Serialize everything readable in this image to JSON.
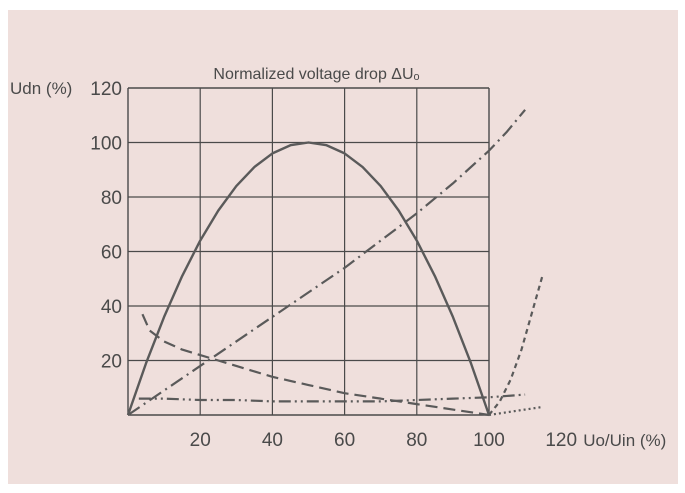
{
  "chart_data": {
    "type": "line",
    "title": "Normalized voltage drop ΔUₒ",
    "xlabel": "Uo/Uin (%)",
    "ylabel": "Udn (%)",
    "xlim": [
      0,
      120
    ],
    "ylim": [
      0,
      120
    ],
    "x_ticks": [
      20,
      40,
      60,
      80,
      100,
      120
    ],
    "y_ticks": [
      20,
      40,
      60,
      80,
      100,
      120
    ],
    "x_tick_labels": [
      "20",
      "40",
      "60",
      "80",
      "100",
      "120"
    ],
    "y_tick_labels": [
      "20",
      "40",
      "60",
      "80",
      "100",
      "120"
    ],
    "grid": true,
    "colors": {
      "background": "#efdfdc",
      "plot_area": "#efdfdc",
      "grid": "#4a4a4a",
      "curve": "#5a5a5a",
      "text": "#4a4a4a"
    },
    "series": [
      {
        "style": "solid",
        "x": [
          0,
          5,
          10,
          15,
          20,
          25,
          30,
          35,
          40,
          45,
          50,
          55,
          60,
          65,
          70,
          75,
          80,
          85,
          90,
          95,
          100
        ],
        "y": [
          0,
          19,
          36,
          51,
          64,
          75,
          84,
          91,
          96,
          99,
          100,
          99,
          96,
          91,
          84,
          75,
          64,
          51,
          36,
          19,
          0
        ]
      },
      {
        "style": "dash-dot",
        "x": [
          0,
          10,
          20,
          30,
          40,
          50,
          60,
          70,
          80,
          90,
          100,
          105,
          110
        ],
        "y": [
          0,
          9,
          18,
          27,
          36,
          45,
          54,
          64,
          74,
          85,
          97,
          104,
          112
        ]
      },
      {
        "style": "dashed",
        "x": [
          4,
          6,
          10,
          15,
          20,
          30,
          40,
          50,
          60,
          70,
          80,
          90,
          100
        ],
        "y": [
          37,
          31,
          27,
          24,
          22,
          18,
          14,
          11,
          8,
          6,
          4,
          2,
          0
        ]
      },
      {
        "style": "dash-dot-dot",
        "x": [
          3,
          10,
          20,
          30,
          40,
          50,
          60,
          70,
          80,
          90,
          100,
          105,
          110
        ],
        "y": [
          6,
          6,
          5.5,
          5.5,
          5,
          5,
          5,
          5,
          5.5,
          6,
          6.5,
          7,
          7.5
        ]
      },
      {
        "style": "short-dash",
        "x": [
          100,
          103,
          106,
          109,
          112,
          115
        ],
        "y": [
          0,
          5,
          13,
          24,
          38,
          52
        ]
      },
      {
        "style": "dotted",
        "x": [
          100,
          105,
          110,
          115
        ],
        "y": [
          0,
          1,
          2,
          3
        ]
      }
    ]
  }
}
